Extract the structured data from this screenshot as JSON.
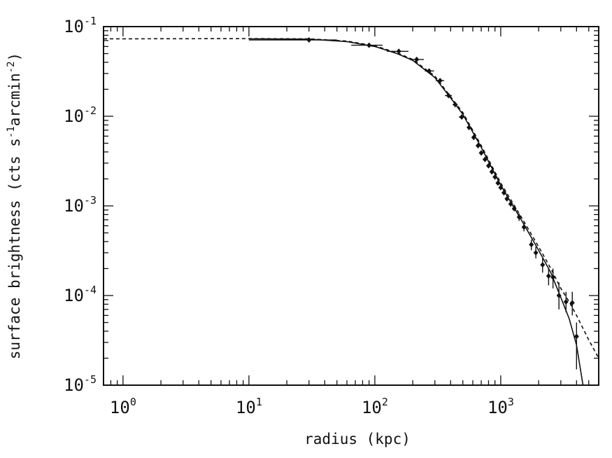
{
  "chart_data": {
    "type": "scatter",
    "title": "",
    "xlabel": "radius (kpc)",
    "ylabel": "surface brightness (cts s^-1 arcmin^-2)",
    "ylabel_parts": {
      "prefix": "surface brightness (cts s",
      "exp1": "-1",
      "mid": "arcmin",
      "exp2": "-2",
      "suffix": ")"
    },
    "xscale": "log",
    "yscale": "log",
    "xlim": [
      0.7,
      6000
    ],
    "ylim": [
      1e-05,
      0.1
    ],
    "grid": false,
    "legend": "none",
    "x_ticks": [
      {
        "value": 1,
        "base": "10",
        "exp": "0"
      },
      {
        "value": 10,
        "base": "10",
        "exp": "1"
      },
      {
        "value": 100,
        "base": "10",
        "exp": "2"
      },
      {
        "value": 1000,
        "base": "10",
        "exp": "3"
      }
    ],
    "y_ticks": [
      {
        "value": 1e-05,
        "base": "10",
        "exp": "-5"
      },
      {
        "value": 0.0001,
        "base": "10",
        "exp": "-4"
      },
      {
        "value": 0.001,
        "base": "10",
        "exp": "-3"
      },
      {
        "value": 0.01,
        "base": "10",
        "exp": "-2"
      },
      {
        "value": 0.1,
        "base": "10",
        "exp": "-1"
      }
    ],
    "series": [
      {
        "style": "points-with-errorbars",
        "points": [
          {
            "x": 30,
            "y": 0.071,
            "xerr": [
              10,
              50
            ],
            "yerr": [
              0.067,
              0.075
            ]
          },
          {
            "x": 90,
            "y": 0.062,
            "xerr": [
              65,
              115
            ],
            "yerr": [
              0.059,
              0.065
            ]
          },
          {
            "x": 155,
            "y": 0.053,
            "xerr": [
              125,
              185
            ],
            "yerr": [
              0.051,
              0.055
            ]
          },
          {
            "x": 215,
            "y": 0.043,
            "xerr": [
              190,
              245
            ],
            "yerr": [
              0.041,
              0.045
            ]
          },
          {
            "x": 270,
            "y": 0.032,
            "xerr": [
              250,
              295
            ],
            "yerr": [
              0.031,
              0.033
            ]
          },
          {
            "x": 330,
            "y": 0.025,
            "xerr": [
              305,
              355
            ]
          },
          {
            "x": 385,
            "y": 0.017,
            "xerr": [
              360,
              410
            ]
          },
          {
            "x": 435,
            "y": 0.0135,
            "xerr": [
              415,
              455
            ]
          },
          {
            "x": 490,
            "y": 0.0098,
            "xerr": [
              465,
              530
            ]
          },
          {
            "x": 560,
            "y": 0.0075,
            "xerr": [
              540,
              580
            ]
          },
          {
            "x": 610,
            "y": 0.0058
          },
          {
            "x": 660,
            "y": 0.0047
          },
          {
            "x": 700,
            "y": 0.0039
          },
          {
            "x": 750,
            "y": 0.0033
          },
          {
            "x": 800,
            "y": 0.0028
          },
          {
            "x": 850,
            "y": 0.0024
          },
          {
            "x": 900,
            "y": 0.0021
          },
          {
            "x": 950,
            "y": 0.0018
          },
          {
            "x": 1000,
            "y": 0.0016
          },
          {
            "x": 1060,
            "y": 0.0014
          },
          {
            "x": 1120,
            "y": 0.0012
          },
          {
            "x": 1200,
            "y": 0.00105
          },
          {
            "x": 1280,
            "y": 0.00093
          },
          {
            "x": 1400,
            "y": 0.00075,
            "yerr": [
              0.00068,
              0.00082
            ]
          },
          {
            "x": 1530,
            "y": 0.00058,
            "yerr": [
              0.00052,
              0.00064
            ]
          },
          {
            "x": 1750,
            "y": 0.00037,
            "yerr": [
              0.00032,
              0.00042
            ]
          },
          {
            "x": 1900,
            "y": 0.0003,
            "yerr": [
              0.00026,
              0.00035
            ]
          },
          {
            "x": 2150,
            "y": 0.00022,
            "yerr": [
              0.00018,
              0.00026
            ]
          },
          {
            "x": 2400,
            "y": 0.000165,
            "yerr": [
              0.00013,
              0.0002
            ]
          },
          {
            "x": 2600,
            "y": 0.00016,
            "yerr": [
              0.00012,
              0.0002
            ]
          },
          {
            "x": 2900,
            "y": 0.0001,
            "yerr": [
              7e-05,
              0.00014
            ]
          },
          {
            "x": 3300,
            "y": 8.5e-05,
            "yerr": [
              6.5e-05,
              0.00011
            ]
          },
          {
            "x": 3700,
            "y": 8.3e-05,
            "yerr": [
              6e-05,
              0.00011
            ]
          },
          {
            "x": 4000,
            "y": 3.5e-05,
            "yerr": [
              1.5e-05,
              5e-05
            ]
          }
        ]
      },
      {
        "style": "solid-line",
        "points": [
          {
            "x": 10,
            "y": 0.073
          },
          {
            "x": 30,
            "y": 0.0725
          },
          {
            "x": 60,
            "y": 0.068
          },
          {
            "x": 100,
            "y": 0.06
          },
          {
            "x": 150,
            "y": 0.05
          },
          {
            "x": 200,
            "y": 0.042
          },
          {
            "x": 300,
            "y": 0.027
          },
          {
            "x": 400,
            "y": 0.016
          },
          {
            "x": 500,
            "y": 0.0105
          },
          {
            "x": 700,
            "y": 0.0045
          },
          {
            "x": 1000,
            "y": 0.0017
          },
          {
            "x": 1500,
            "y": 0.00065
          },
          {
            "x": 2000,
            "y": 0.00032
          },
          {
            "x": 2500,
            "y": 0.00018
          },
          {
            "x": 3000,
            "y": 9.5e-05
          },
          {
            "x": 3500,
            "y": 5.5e-05
          },
          {
            "x": 4000,
            "y": 2.8e-05
          },
          {
            "x": 4500,
            "y": 1e-05
          }
        ]
      },
      {
        "style": "dashed-line",
        "points": [
          {
            "x": 0.7,
            "y": 0.073
          },
          {
            "x": 10,
            "y": 0.0735
          },
          {
            "x": 30,
            "y": 0.073
          },
          {
            "x": 60,
            "y": 0.069
          },
          {
            "x": 100,
            "y": 0.061
          },
          {
            "x": 150,
            "y": 0.051
          },
          {
            "x": 200,
            "y": 0.043
          },
          {
            "x": 300,
            "y": 0.028
          },
          {
            "x": 400,
            "y": 0.0165
          },
          {
            "x": 500,
            "y": 0.011
          },
          {
            "x": 700,
            "y": 0.0047
          },
          {
            "x": 1000,
            "y": 0.0018
          },
          {
            "x": 1500,
            "y": 0.0007
          },
          {
            "x": 2000,
            "y": 0.00035
          },
          {
            "x": 2500,
            "y": 0.0002
          },
          {
            "x": 3000,
            "y": 0.00012
          },
          {
            "x": 3500,
            "y": 8.5e-05
          },
          {
            "x": 4000,
            "y": 6e-05
          },
          {
            "x": 4500,
            "y": 4.3e-05
          },
          {
            "x": 5000,
            "y": 3.2e-05
          },
          {
            "x": 6000,
            "y": 2e-05
          }
        ]
      }
    ]
  }
}
